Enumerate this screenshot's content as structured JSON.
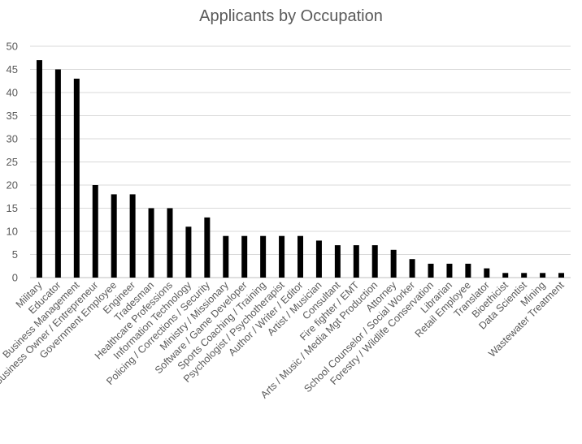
{
  "chart_data": {
    "type": "bar",
    "title": "Applicants by Occupation",
    "xlabel": "",
    "ylabel": "",
    "ylim": [
      0,
      50
    ],
    "yticks": [
      0,
      5,
      10,
      15,
      20,
      25,
      30,
      35,
      40,
      45,
      50
    ],
    "grid": true,
    "legend": "none",
    "bar_color": "#000000",
    "categories": [
      "Military",
      "Educator",
      "Business Management",
      "Business Owner / Entrepreneur",
      "Government Employee",
      "Engineer",
      "Tradesman",
      "Healthcare Professions",
      "Information Technology",
      "Policing / Corrections / Security",
      "Ministry / Missionary",
      "Software / Game Developer",
      "Sports Coaching / Training",
      "Psychologist / Psychotherapist",
      "Author / Writer / Editor",
      "Artist / Musician",
      "Consultant",
      "Fire fighter / EMT",
      "Arts / Music / Media Mgt Production",
      "Attorney",
      "School Counselor / Social Worker",
      "Forestry / Wildlife Conservation",
      "Librarian",
      "Retail Employee",
      "Translator",
      "Bioethicist",
      "Data Scientist",
      "Mining",
      "Wastewater Treatment"
    ],
    "values": [
      47,
      45,
      43,
      20,
      18,
      18,
      15,
      15,
      11,
      13,
      9,
      9,
      9,
      9,
      9,
      8,
      7,
      7,
      7,
      6,
      4,
      3,
      3,
      3,
      2,
      1,
      1,
      1,
      1
    ]
  }
}
